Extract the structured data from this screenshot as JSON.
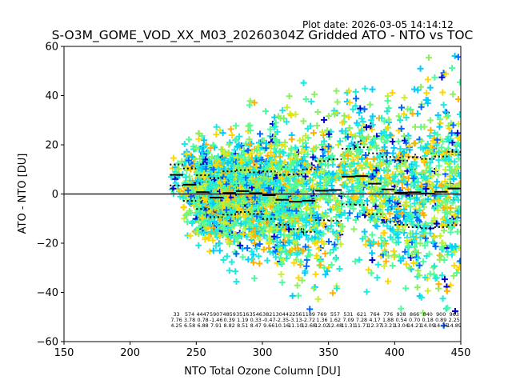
{
  "chart_data": {
    "type": "scatter",
    "title": "S-O3M_GOME_VOD_XX_M03_20260304Z Gridded ATO - NTO vs TOC",
    "plot_date": "Plot date: 2026-03-05 14:14:12",
    "xlabel": "NTO Total Ozone Column [DU]",
    "ylabel": "ATO - NTO [DU]",
    "xlim": [
      150,
      450
    ],
    "ylim": [
      -60,
      60
    ],
    "xticks": [
      "150",
      "200",
      "250",
      "300",
      "350",
      "400",
      "450"
    ],
    "xtick_values": [
      150,
      200,
      250,
      300,
      350,
      400,
      450
    ],
    "yticks": [
      "60",
      "40",
      "20",
      "0",
      "−20",
      "−40",
      "−60"
    ],
    "ytick_values": [
      60,
      40,
      20,
      0,
      -20,
      -40,
      -60
    ],
    "zero_line": 0,
    "marker": "+",
    "colormap": [
      "#0000cc",
      "#0066ff",
      "#00ccff",
      "#1de9e0",
      "#4dfc9c",
      "#8cf060",
      "#c8f030",
      "#ffd700",
      "#ffb000"
    ],
    "bins": {
      "centers": [
        235,
        245,
        255,
        265,
        275,
        285,
        295,
        305,
        315,
        325,
        335,
        345,
        355,
        365,
        375,
        385,
        395,
        405,
        415,
        425,
        435,
        445
      ],
      "counts": [
        "33",
        "574",
        "4447",
        "5907",
        "4859",
        "3516",
        "3546",
        "3821",
        "3044",
        "2256",
        "1189",
        "769",
        "557",
        "531",
        "621",
        "764",
        "776",
        "938",
        "866",
        "840",
        "900",
        "963"
      ],
      "means": [
        "7.76",
        "3.78",
        "0.78",
        "-1.46",
        "0.39",
        "1.19",
        "0.33",
        "-0.47",
        "-2.35",
        "-3.13",
        "-2.72",
        "1.36",
        "1.62",
        "7.09",
        "7.28",
        "4.17",
        "1.88",
        "0.54",
        "0.70",
        "0.18",
        "0.89",
        "2.25"
      ],
      "stds": [
        "4.25",
        "6.58",
        "6.88",
        "7.91",
        "8.82",
        "8.51",
        "8.47",
        "9.66",
        "10.16",
        "11.10",
        "12.68",
        "12.02",
        "12.48",
        "11.31",
        "11.71",
        "12.37",
        "13.21",
        "13.04",
        "14.21",
        "14.09",
        "14.35",
        "14.89"
      ]
    }
  }
}
